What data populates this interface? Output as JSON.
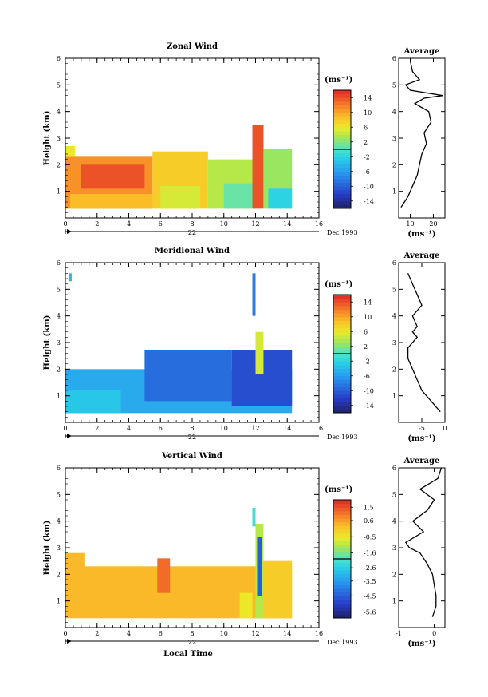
{
  "chart_data": [
    {
      "type": "heatmap",
      "title": "Zonal Wind",
      "ylabel": "Height (km)",
      "xlim": [
        0,
        16
      ],
      "ylim": [
        0,
        6
      ],
      "x_ticks": [
        0,
        2,
        4,
        6,
        8,
        10,
        12,
        14,
        16
      ],
      "y_ticks": [
        1,
        2,
        3,
        4,
        5,
        6
      ],
      "date_label": "Dec 1993",
      "day_label": "22",
      "colorbar": {
        "unit": "(ms⁻¹)",
        "range": [
          -16,
          16
        ],
        "tick_labels": [
          "14",
          "10",
          "6",
          "2",
          "-2",
          "-6",
          "-10",
          "-14"
        ],
        "tick_values": [
          14,
          10,
          6,
          2,
          -2,
          -6,
          -10,
          -14
        ]
      },
      "regions": [
        {
          "x0": 0.0,
          "x1": 5.5,
          "y0": 0.35,
          "y1": 2.3,
          "value": 11
        },
        {
          "x0": 0.0,
          "x1": 0.6,
          "y0": 2.3,
          "y1": 2.7,
          "value": 6
        },
        {
          "x0": 1.0,
          "x1": 5.0,
          "y0": 1.1,
          "y1": 2.0,
          "value": 14
        },
        {
          "x0": 0.3,
          "x1": 5.5,
          "y0": 0.35,
          "y1": 0.9,
          "value": 9
        },
        {
          "x0": 5.5,
          "x1": 9.0,
          "y0": 0.35,
          "y1": 2.5,
          "value": 8
        },
        {
          "x0": 6.0,
          "x1": 8.5,
          "y0": 0.35,
          "y1": 1.2,
          "value": 5
        },
        {
          "x0": 9.0,
          "x1": 12.0,
          "y0": 0.35,
          "y1": 2.2,
          "value": 4
        },
        {
          "x0": 10.0,
          "x1": 11.8,
          "y0": 0.35,
          "y1": 1.3,
          "value": 1
        },
        {
          "x0": 11.8,
          "x1": 12.5,
          "y0": 0.35,
          "y1": 3.5,
          "value": 14
        },
        {
          "x0": 12.5,
          "x1": 14.3,
          "y0": 0.35,
          "y1": 2.6,
          "value": 3
        },
        {
          "x0": 12.8,
          "x1": 14.3,
          "y0": 0.35,
          "y1": 1.1,
          "value": -2
        }
      ],
      "average": {
        "title": "Average",
        "unit": "(ms⁻¹)",
        "xlim": [
          5,
          25
        ],
        "x_ticks": [
          10,
          20
        ],
        "heights": [
          0.4,
          0.8,
          1.2,
          1.6,
          2.0,
          2.4,
          2.8,
          3.2,
          3.6,
          4.0,
          4.3,
          4.5,
          4.6,
          4.8,
          5.0,
          5.2,
          5.5,
          5.9
        ],
        "values": [
          6,
          9,
          11,
          13,
          14,
          15,
          17,
          16,
          19,
          18,
          12,
          16,
          24,
          10,
          8,
          14,
          11,
          10
        ]
      }
    },
    {
      "type": "heatmap",
      "title": "Meridional Wind",
      "ylabel": "Height (km)",
      "xlim": [
        0,
        16
      ],
      "ylim": [
        0,
        6
      ],
      "x_ticks": [
        0,
        2,
        4,
        6,
        8,
        10,
        12,
        14,
        16
      ],
      "y_ticks": [
        1,
        2,
        3,
        4,
        5,
        6
      ],
      "date_label": "Dec 1993",
      "day_label": "22",
      "colorbar": {
        "unit": "(ms⁻¹)",
        "range": [
          -16,
          16
        ],
        "tick_labels": [
          "14",
          "10",
          "6",
          "2",
          "-2",
          "-6",
          "-10",
          "-14"
        ],
        "tick_values": [
          14,
          10,
          6,
          2,
          -2,
          -6,
          -10,
          -14
        ]
      },
      "regions": [
        {
          "x0": 0.0,
          "x1": 14.3,
          "y0": 0.35,
          "y1": 2.0,
          "value": -5
        },
        {
          "x0": 0.0,
          "x1": 3.5,
          "y0": 0.35,
          "y1": 1.2,
          "value": -3
        },
        {
          "x0": 5.0,
          "x1": 10.5,
          "y0": 0.8,
          "y1": 2.7,
          "value": -9
        },
        {
          "x0": 10.5,
          "x1": 14.3,
          "y0": 0.6,
          "y1": 2.7,
          "value": -11
        },
        {
          "x0": 11.8,
          "x1": 12.0,
          "y0": 4.0,
          "y1": 5.6,
          "value": -8
        },
        {
          "x0": 12.0,
          "x1": 12.5,
          "y0": 1.8,
          "y1": 3.4,
          "value": 5
        },
        {
          "x0": 0.2,
          "x1": 0.4,
          "y0": 5.3,
          "y1": 5.6,
          "value": -4
        }
      ],
      "average": {
        "title": "Average",
        "unit": "(ms⁻¹)",
        "xlim": [
          -10,
          0
        ],
        "x_ticks": [
          -5,
          0
        ],
        "heights": [
          0.4,
          0.8,
          1.2,
          1.6,
          2.0,
          2.4,
          2.8,
          3.2,
          3.4,
          3.6,
          4.0,
          4.4,
          4.8,
          5.2,
          5.6
        ],
        "values": [
          -1,
          -3,
          -5,
          -6,
          -7,
          -8,
          -8,
          -6,
          -7,
          -6,
          -7,
          -5,
          -6,
          -7,
          -8
        ]
      }
    },
    {
      "type": "heatmap",
      "title": "Vertical Wind",
      "ylabel": "Height (km)",
      "xlabel": "Local Time",
      "xlim": [
        0,
        16
      ],
      "ylim": [
        0,
        6
      ],
      "x_ticks": [
        0,
        2,
        4,
        6,
        8,
        10,
        12,
        14,
        16
      ],
      "y_ticks": [
        1,
        2,
        3,
        4,
        5,
        6
      ],
      "date_label": "Dec 1993",
      "day_label": "22",
      "colorbar": {
        "unit": "(ms⁻¹)",
        "range": [
          -6.0,
          2.0
        ],
        "tick_labels": [
          "1.5",
          "0.6",
          "-0.5",
          "-1.6",
          "-2.6",
          "-3.5",
          "-4.5",
          "-5.6"
        ],
        "tick_values": [
          1.5,
          0.6,
          -0.5,
          -1.6,
          -2.6,
          -3.5,
          -4.5,
          -5.6
        ]
      },
      "regions": [
        {
          "x0": 0.0,
          "x1": 14.3,
          "y0": 0.35,
          "y1": 2.3,
          "value": 0.3
        },
        {
          "x0": 0.0,
          "x1": 1.2,
          "y0": 2.0,
          "y1": 2.8,
          "value": 0.3
        },
        {
          "x0": 5.8,
          "x1": 6.6,
          "y0": 1.3,
          "y1": 2.6,
          "value": 1.2
        },
        {
          "x0": 11.0,
          "x1": 11.8,
          "y0": 0.35,
          "y1": 1.3,
          "value": -0.5
        },
        {
          "x0": 11.8,
          "x1": 12.0,
          "y0": 3.8,
          "y1": 4.5,
          "value": -2.2
        },
        {
          "x0": 12.0,
          "x1": 12.5,
          "y0": 0.35,
          "y1": 3.9,
          "value": -1.0
        },
        {
          "x0": 12.1,
          "x1": 12.4,
          "y0": 1.2,
          "y1": 3.4,
          "value": -4.5
        },
        {
          "x0": 12.5,
          "x1": 14.3,
          "y0": 0.35,
          "y1": 2.5,
          "value": 0.0
        }
      ],
      "average": {
        "title": "Average",
        "unit": "(ms⁻¹)",
        "xlim": [
          -1,
          0.3
        ],
        "x_ticks": [
          -1,
          0
        ],
        "heights": [
          0.4,
          0.8,
          1.2,
          1.6,
          2.0,
          2.4,
          2.8,
          3.0,
          3.2,
          3.6,
          4.0,
          4.4,
          4.8,
          5.2,
          5.6,
          6.0
        ],
        "values": [
          -0.05,
          0.05,
          0.05,
          0.0,
          -0.05,
          -0.2,
          -0.4,
          -0.7,
          -0.8,
          -0.3,
          -0.6,
          -0.2,
          0.0,
          -0.4,
          0.1,
          0.2
        ]
      }
    }
  ]
}
